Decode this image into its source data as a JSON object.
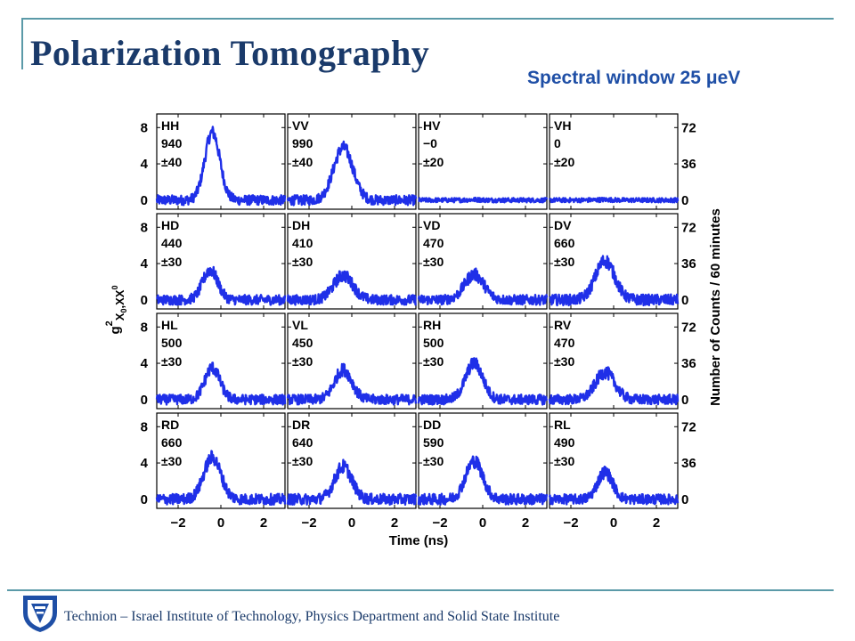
{
  "header": {
    "title": "Polarization Tomography",
    "subtitle": "Spectral window 25 μeV"
  },
  "footer": {
    "text": "Technion – Israel Institute of Technology, Physics Department and Solid State Institute",
    "logo_icon": "technion-logo-icon"
  },
  "colors": {
    "accent": "#5b9aa8",
    "trace": "#1f2fe8",
    "title": "#1a3a6a",
    "subtitle": "#1f4fa6"
  },
  "chart_data": {
    "type": "line",
    "grid": false,
    "layout": "4x4 small multiples",
    "xlabel": "Time (ns)",
    "x_ticks": [
      -2,
      0,
      2
    ],
    "xlim": [
      -3,
      3
    ],
    "ylabel_left": "g²X0,XX0",
    "ylabel_left_parts": {
      "base": "g",
      "sup": "2",
      "sub1": "X",
      "sub1sub": "0",
      "sub2": ",XX",
      "sub2sup": "0"
    },
    "ylabel_right": "Number of Counts / 60 minutes",
    "y_ticks_left": [
      0,
      4,
      8
    ],
    "y_ticks_right": [
      0,
      36,
      72
    ],
    "ylim": [
      -1,
      9.5
    ],
    "panels": [
      {
        "label": "HH",
        "value": "940",
        "error": "±40",
        "peak": 7.5,
        "peak_x": -0.4,
        "width": 0.35,
        "noise": 0.55
      },
      {
        "label": "VV",
        "value": "990",
        "error": "±40",
        "peak": 5.8,
        "peak_x": -0.4,
        "width": 0.45,
        "noise": 0.55
      },
      {
        "label": "HV",
        "value": "−0",
        "error": "±20",
        "peak": 0.05,
        "peak_x": -0.4,
        "width": 0.35,
        "noise": 0.25
      },
      {
        "label": "VH",
        "value": "0",
        "error": "±20",
        "peak": 0.05,
        "peak_x": -0.4,
        "width": 0.35,
        "noise": 0.25
      },
      {
        "label": "HD",
        "value": "440",
        "error": "±30",
        "peak": 3.3,
        "peak_x": -0.5,
        "width": 0.35,
        "noise": 0.55
      },
      {
        "label": "DH",
        "value": "410",
        "error": "±30",
        "peak": 2.7,
        "peak_x": -0.4,
        "width": 0.45,
        "noise": 0.55
      },
      {
        "label": "VD",
        "value": "470",
        "error": "±30",
        "peak": 2.8,
        "peak_x": -0.4,
        "width": 0.45,
        "noise": 0.55
      },
      {
        "label": "DV",
        "value": "660",
        "error": "±30",
        "peak": 4.3,
        "peak_x": -0.4,
        "width": 0.45,
        "noise": 0.6
      },
      {
        "label": "HL",
        "value": "500",
        "error": "±30",
        "peak": 3.5,
        "peak_x": -0.4,
        "width": 0.35,
        "noise": 0.55
      },
      {
        "label": "VL",
        "value": "450",
        "error": "±30",
        "peak": 3.3,
        "peak_x": -0.4,
        "width": 0.4,
        "noise": 0.55
      },
      {
        "label": "RH",
        "value": "500",
        "error": "±30",
        "peak": 4.0,
        "peak_x": -0.4,
        "width": 0.4,
        "noise": 0.55
      },
      {
        "label": "RV",
        "value": "470",
        "error": "±30",
        "peak": 3.0,
        "peak_x": -0.4,
        "width": 0.45,
        "noise": 0.55
      },
      {
        "label": "RD",
        "value": "660",
        "error": "±30",
        "peak": 4.6,
        "peak_x": -0.4,
        "width": 0.4,
        "noise": 0.6
      },
      {
        "label": "DR",
        "value": "640",
        "error": "±30",
        "peak": 3.6,
        "peak_x": -0.4,
        "width": 0.4,
        "noise": 0.6
      },
      {
        "label": "DD",
        "value": "590",
        "error": "±30",
        "peak": 4.2,
        "peak_x": -0.4,
        "width": 0.4,
        "noise": 0.6
      },
      {
        "label": "RL",
        "value": "490",
        "error": "±30",
        "peak": 3.0,
        "peak_x": -0.4,
        "width": 0.35,
        "noise": 0.55
      }
    ]
  }
}
